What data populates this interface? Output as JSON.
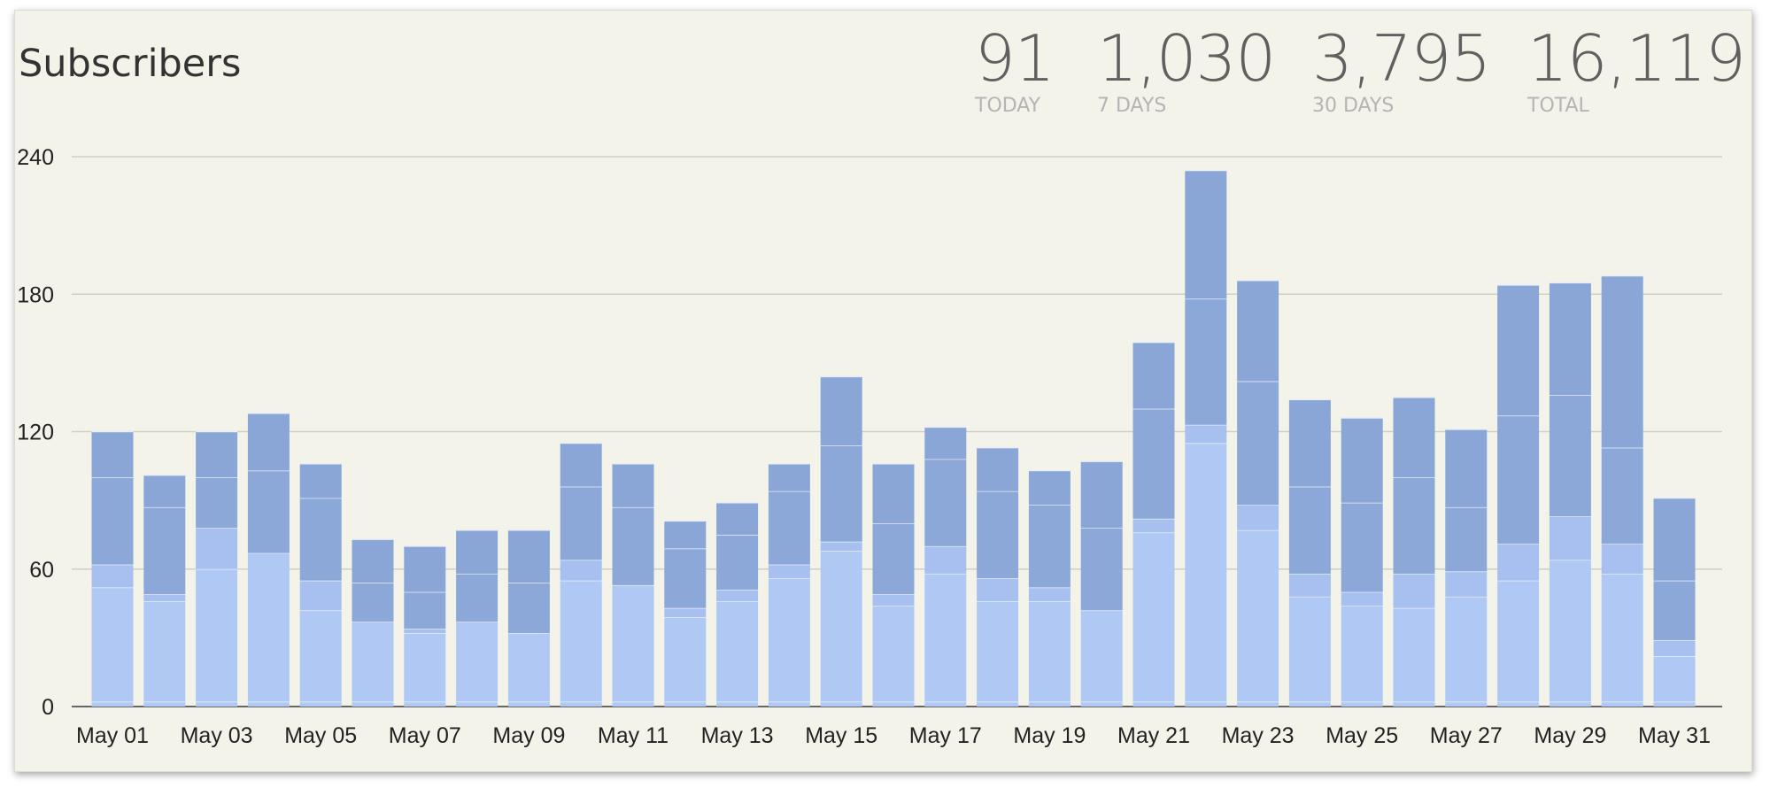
{
  "header": {
    "title": "Subscribers"
  },
  "stats": [
    {
      "value": "91",
      "label": "TODAY"
    },
    {
      "value": "1,030",
      "label": "7 DAYS"
    },
    {
      "value": "3,795",
      "label": "30 DAYS"
    },
    {
      "value": "16,119",
      "label": "TOTAL"
    }
  ],
  "chart_data": {
    "type": "bar",
    "stacked": true,
    "title": "Subscribers",
    "xlabel": "",
    "ylabel": "",
    "ylim": [
      0,
      240
    ],
    "yticks": [
      0,
      60,
      120,
      180,
      240
    ],
    "grid": true,
    "legend": "none",
    "categories": [
      "May 01",
      "May 02",
      "May 03",
      "May 04",
      "May 05",
      "May 06",
      "May 07",
      "May 08",
      "May 09",
      "May 10",
      "May 11",
      "May 12",
      "May 13",
      "May 14",
      "May 15",
      "May 16",
      "May 17",
      "May 18",
      "May 19",
      "May 20",
      "May 21",
      "May 22",
      "May 23",
      "May 24",
      "May 25",
      "May 26",
      "May 27",
      "May 28",
      "May 29",
      "May 30",
      "May 31"
    ],
    "tick_labels": [
      "May 01",
      "May 03",
      "May 05",
      "May 07",
      "May 09",
      "May 11",
      "May 13",
      "May 15",
      "May 17",
      "May 19",
      "May 21",
      "May 23",
      "May 25",
      "May 27",
      "May 29",
      "May 31"
    ],
    "totals": [
      120,
      101,
      120,
      128,
      106,
      73,
      70,
      77,
      77,
      115,
      106,
      81,
      89,
      106,
      144,
      106,
      122,
      113,
      103,
      107,
      159,
      234,
      186,
      134,
      126,
      135,
      121,
      184,
      185,
      188,
      91
    ],
    "series": [
      {
        "values": [
          52,
          46,
          60,
          67,
          42,
          37,
          32,
          37,
          32,
          55,
          53,
          39,
          46,
          56,
          68,
          44,
          58,
          46,
          46,
          42,
          76,
          115,
          77,
          48,
          44,
          43,
          48,
          55,
          64,
          58,
          22
        ]
      },
      {
        "values": [
          10,
          3,
          18,
          0,
          13,
          0,
          2,
          0,
          0,
          9,
          0,
          4,
          5,
          6,
          4,
          5,
          12,
          10,
          6,
          0,
          6,
          8,
          11,
          10,
          6,
          15,
          11,
          16,
          19,
          13,
          7
        ]
      },
      {
        "values": [
          38,
          38,
          22,
          36,
          36,
          17,
          16,
          21,
          22,
          32,
          34,
          26,
          24,
          32,
          42,
          31,
          38,
          38,
          36,
          36,
          48,
          55,
          54,
          38,
          39,
          42,
          28,
          56,
          53,
          42,
          26
        ]
      },
      {
        "values": [
          20,
          14,
          20,
          25,
          15,
          19,
          20,
          19,
          23,
          19,
          19,
          12,
          14,
          12,
          30,
          26,
          14,
          19,
          15,
          29,
          29,
          56,
          44,
          38,
          37,
          35,
          34,
          57,
          49,
          75,
          36
        ]
      }
    ],
    "colors": [
      "#afc8f4",
      "#a7c0ef",
      "#8ba8d8",
      "#89a6d6"
    ]
  }
}
